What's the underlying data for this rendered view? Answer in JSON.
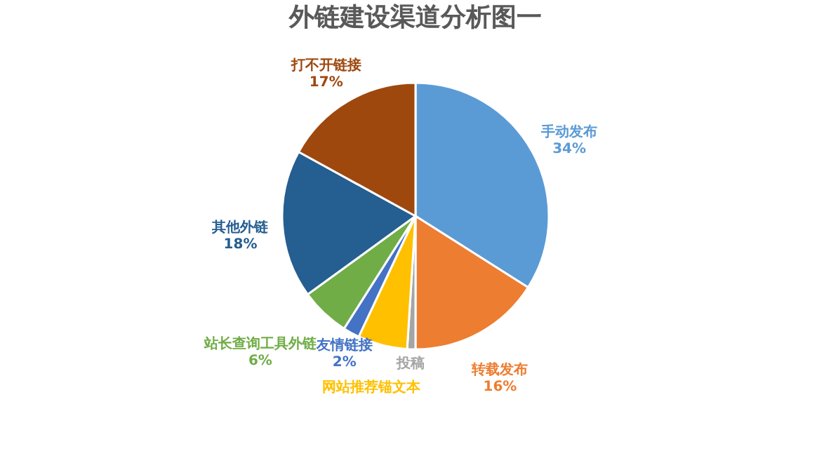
{
  "chart_data": {
    "type": "pie",
    "title": "外链建设渠道分析图一",
    "categories": [
      "手动发布",
      "转载发布",
      "投稿",
      "网站推荐锚文本",
      "友情链接",
      "站长查询工具外链",
      "其他外链",
      "打不开链接"
    ],
    "values": [
      34,
      16,
      1,
      6,
      2,
      6,
      18,
      17
    ],
    "value_labels": [
      "34%",
      "16%",
      null,
      null,
      "2%",
      "6%",
      "18%",
      "17%"
    ],
    "colors": [
      "#5b9bd5",
      "#ed7d31",
      "#a5a5a5",
      "#ffc000",
      "#4472c4",
      "#70ad47",
      "#255e91",
      "#9e480e"
    ],
    "legend": false
  }
}
